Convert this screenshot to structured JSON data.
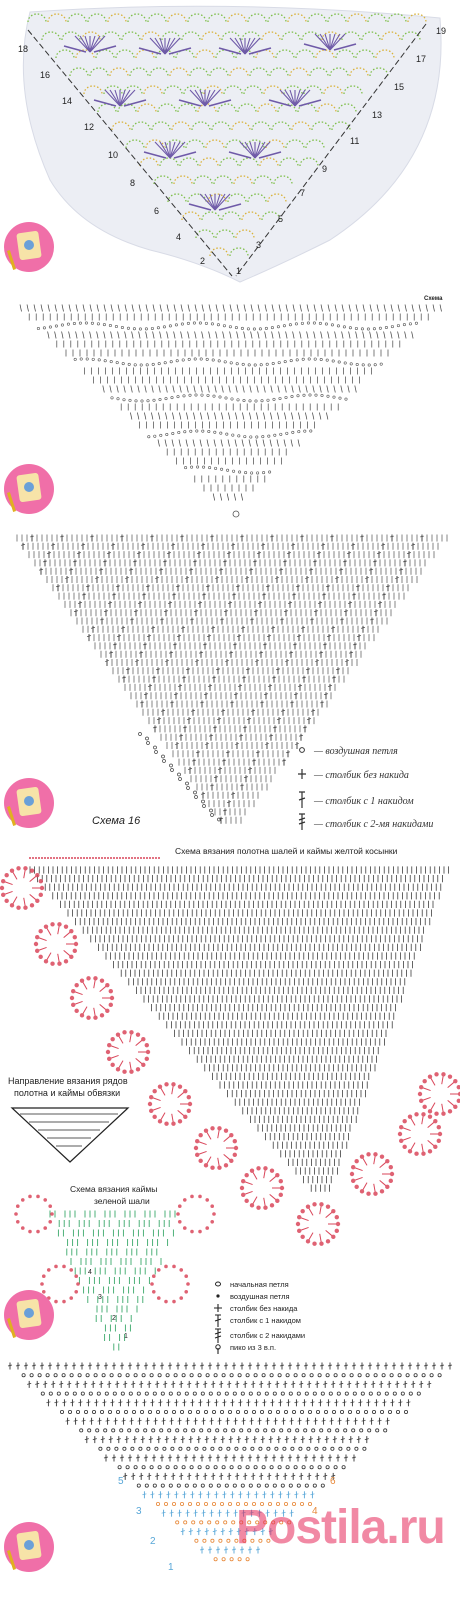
{
  "panel1": {
    "row_numbers": [
      "1",
      "2",
      "3",
      "4",
      "5",
      "6",
      "7",
      "8",
      "9",
      "10",
      "11",
      "12",
      "13",
      "14",
      "15",
      "16",
      "17",
      "18",
      "19"
    ],
    "colors": {
      "paper": "#eceef4",
      "ring_green": "#7fbf4a",
      "ring_yellow": "#d9b33a",
      "motif": "#6f5aa8",
      "dash": "#333333"
    }
  },
  "panel2": {
    "label": "Схема"
  },
  "panel3": {
    "label": "Схема 16",
    "legend": [
      {
        "icon": "chain-stitch-icon",
        "text": "— воздушная петля"
      },
      {
        "icon": "single-crochet-icon",
        "text": "— столбик без накида"
      },
      {
        "icon": "double-crochet-icon",
        "text": "— столбик с 1 накидом"
      },
      {
        "icon": "treble-crochet-icon",
        "text": "— столбик с  2-мя накидами"
      }
    ]
  },
  "panel4": {
    "title": "Схема вязания полотна шалей и каймы желтой косынки",
    "direction_title": "Направление вязания рядов полотна и каймы обвязки",
    "border_title": "Схема вязания каймы зеленой шали",
    "border_numbers": [
      "4",
      "3",
      "2",
      "1"
    ],
    "legend": [
      {
        "icon": "slip-loop-icon",
        "text": "начальная петля"
      },
      {
        "icon": "chain-dot-icon",
        "text": "воздушная петля"
      },
      {
        "icon": "single-crochet-icon",
        "text": "столбик без накида"
      },
      {
        "icon": "double-crochet-icon",
        "text": "столбик с 1 накидом"
      },
      {
        "icon": "treble-crochet-icon",
        "text": "столбик с 2 накидами"
      },
      {
        "icon": "picot-icon",
        "text": "пико из 3 в.п."
      }
    ],
    "colors": {
      "red": "#d9465a",
      "green": "#3aa86a",
      "ink": "#222222"
    }
  },
  "panel5": {
    "row_numbers": [
      "1",
      "2",
      "3",
      "4",
      "5",
      "6"
    ],
    "colors": {
      "blue": "#58a7d8",
      "orange": "#e8893a"
    }
  },
  "watermark": "Postila.ru"
}
